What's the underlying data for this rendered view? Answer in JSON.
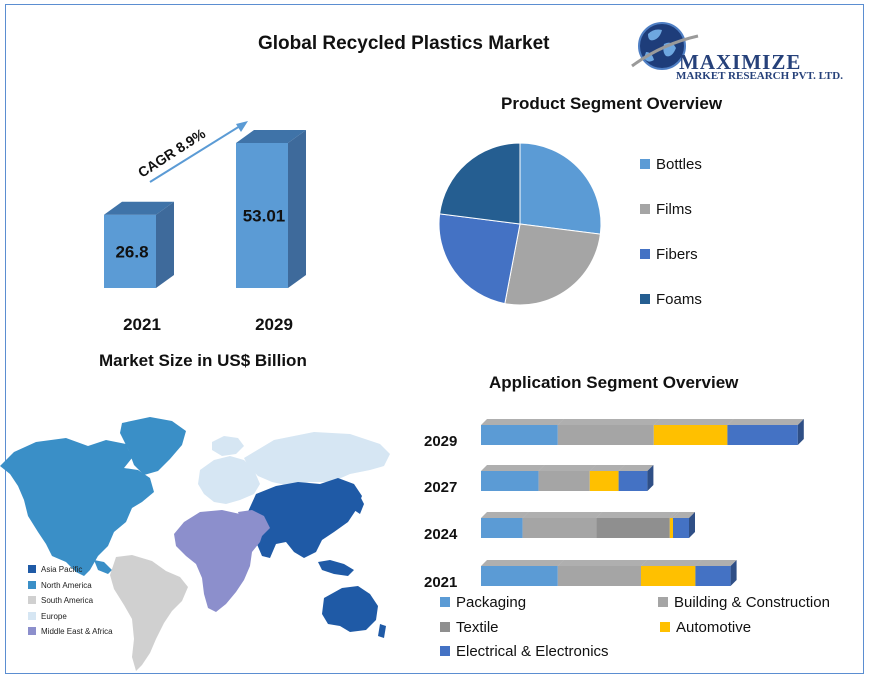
{
  "header": {
    "title": "Global Recycled Plastics Market",
    "logo_name": "MAXIMIZE",
    "logo_subtitle": "MARKET RESEARCH PVT. LTD."
  },
  "chart_data": [
    {
      "type": "bar",
      "categories": [
        "2021",
        "2029"
      ],
      "values": [
        26.8,
        53.01
      ],
      "data_labels": [
        "26.8",
        "53.01"
      ],
      "xlabel": "Market Size in US$ Billion",
      "annotation": "CAGR 8.9%",
      "colors": {
        "front": "#5b9bd5",
        "side": "#3e6a9b",
        "top": "#3f73a8"
      }
    },
    {
      "type": "pie",
      "title": "Product  Segment Overview",
      "labels": [
        "Bottles",
        "Films",
        "Fibers",
        "Foams"
      ],
      "values": [
        27,
        26,
        24,
        23
      ],
      "colors": [
        "#5b9bd5",
        "#a5a5a5",
        "#4472c4",
        "#255e91"
      ]
    },
    {
      "type": "bar",
      "orientation": "horizontal-stacked",
      "title": "Application  Segment Overview",
      "categories": [
        "2029",
        "2027",
        "2024",
        "2021"
      ],
      "series": [
        {
          "name": "Packaging",
          "color": "#5b9bd5",
          "values": [
            24,
            18,
            13,
            24
          ]
        },
        {
          "name": "Building & Construction",
          "color": "#a5a5a5",
          "values": [
            30,
            16,
            23,
            26
          ]
        },
        {
          "name": "Textile",
          "color": "#8f8f8f",
          "values": [
            0,
            0,
            23,
            0
          ]
        },
        {
          "name": "Automotive",
          "color": "#ffc000",
          "values": [
            23,
            9,
            1,
            17
          ]
        },
        {
          "name": "Electrical & Electronics",
          "color": "#4472c4",
          "values": [
            22,
            9,
            5,
            11
          ]
        }
      ]
    }
  ],
  "map": {
    "legend": [
      {
        "name": "Asia Pacific",
        "color": "#1f5aa6"
      },
      {
        "name": "North America",
        "color": "#3a8fc7"
      },
      {
        "name": "South America",
        "color": "#d0d0d0"
      },
      {
        "name": "Europe",
        "color": "#d6e6f3"
      },
      {
        "name": "Middle East & Africa",
        "color": "#8c8fcc"
      }
    ]
  }
}
